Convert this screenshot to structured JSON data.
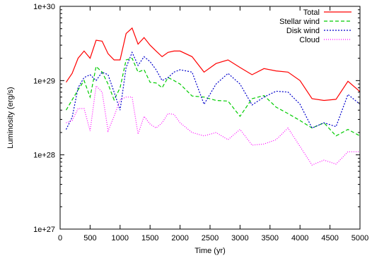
{
  "chart_data": {
    "type": "line",
    "xlabel": "Time (yr)",
    "ylabel": "Luminosity (erg/s)",
    "xlim": [
      0,
      5000
    ],
    "ylim": [
      1e+27,
      1e+30
    ],
    "yscale": "log",
    "grid": false,
    "legend_position": "top-right",
    "x_ticks": [
      {
        "value": 0,
        "label": "0"
      },
      {
        "value": 500,
        "label": "500"
      },
      {
        "value": 1000,
        "label": "1000"
      },
      {
        "value": 1500,
        "label": "1500"
      },
      {
        "value": 2000,
        "label": "2000"
      },
      {
        "value": 2500,
        "label": "2500"
      },
      {
        "value": 3000,
        "label": "3000"
      },
      {
        "value": 3500,
        "label": "3500"
      },
      {
        "value": 4000,
        "label": "4000"
      },
      {
        "value": 4500,
        "label": "4500"
      },
      {
        "value": 5000,
        "label": "5000"
      }
    ],
    "y_ticks": [
      {
        "value": 1e+27,
        "label": "1e+27"
      },
      {
        "value": 1e+28,
        "label": "1e+28"
      },
      {
        "value": 1e+29,
        "label": "1e+29"
      },
      {
        "value": 1e+30,
        "label": "1e+30"
      }
    ],
    "x": [
      100,
      200,
      300,
      400,
      500,
      600,
      700,
      800,
      900,
      1000,
      1100,
      1200,
      1300,
      1400,
      1500,
      1600,
      1700,
      1800,
      1900,
      2000,
      2200,
      2400,
      2600,
      2800,
      3000,
      3200,
      3400,
      3600,
      3800,
      4000,
      4200,
      4400,
      4600,
      4800,
      5000
    ],
    "series": [
      {
        "name": "Total",
        "color": "#ff0000",
        "dash": "",
        "values": [
          9.5e+28,
          1.25e+29,
          2e+29,
          2.5e+29,
          2e+29,
          3.5e+29,
          3.4e+29,
          2.3e+29,
          1.9e+29,
          1.9e+29,
          4.3e+29,
          5.1e+29,
          3.1e+29,
          3.8e+29,
          3e+29,
          2.5e+29,
          2.1e+29,
          2.4e+29,
          2.5e+29,
          2.5e+29,
          2.1e+29,
          1.3e+29,
          1.7e+29,
          1.9e+29,
          1.5e+29,
          1.2e+29,
          1.45e+29,
          1.35e+29,
          1.3e+29,
          1e+29,
          5.7e+28,
          5.4e+28,
          5.6e+28,
          9.8e+28,
          7.1e+28
        ]
      },
      {
        "name": "Stellar wind",
        "color": "#00cc00",
        "dash": "5,3",
        "values": [
          4e+28,
          5.5e+28,
          7.5e+28,
          1e+29,
          6e+28,
          1.55e+29,
          1.3e+29,
          9e+28,
          5.5e+28,
          8e+28,
          1.9e+29,
          2e+29,
          1.3e+29,
          1.4e+29,
          9.5e+28,
          9.3e+28,
          8e+28,
          1.1e+29,
          1e+29,
          9e+28,
          6.2e+28,
          6e+28,
          5.4e+28,
          5.3e+28,
          3.3e+28,
          5.7e+28,
          6.3e+28,
          4.4e+28,
          3.6e+28,
          2.9e+28,
          2.3e+28,
          2.7e+28,
          1.8e+28,
          2.2e+28,
          1.8e+28
        ]
      },
      {
        "name": "Disk wind",
        "color": "#0000cc",
        "dash": "2,2",
        "values": [
          2.2e+28,
          3.2e+28,
          8e+28,
          1.1e+29,
          1.2e+29,
          1e+29,
          1.3e+29,
          1.2e+29,
          7e+28,
          4e+28,
          1.5e+29,
          2.4e+29,
          1.6e+29,
          2.1e+29,
          1.8e+29,
          1.4e+29,
          1e+29,
          1.1e+29,
          1.3e+29,
          1.4e+29,
          1.3e+29,
          4.8e+28,
          9e+28,
          1.25e+29,
          9e+28,
          4.7e+28,
          6e+28,
          7.2e+28,
          7e+28,
          4.8e+28,
          2.3e+28,
          2.7e+28,
          2.4e+28,
          6.5e+28,
          4.8e+28
        ]
      },
      {
        "name": "Cloud",
        "color": "#ff00ff",
        "dash": "1,2",
        "values": [
          2.7e+28,
          2.9e+28,
          4.2e+28,
          4.2e+28,
          2.1e+28,
          8.5e+28,
          7e+28,
          2.1e+28,
          3.3e+28,
          5.5e+28,
          6e+28,
          6e+28,
          1.9e+28,
          3.3e+28,
          2.6e+28,
          2.3e+28,
          2.7e+28,
          3.6e+28,
          3.5e+28,
          2.7e+28,
          2e+28,
          1.8e+28,
          2e+28,
          1.6e+28,
          2.2e+28,
          1.35e+28,
          1.4e+28,
          1.6e+28,
          2.3e+28,
          1.3e+28,
          7.3e+27,
          8.5e+27,
          7.5e+27,
          1.1e+28,
          1.1e+28
        ]
      }
    ]
  }
}
